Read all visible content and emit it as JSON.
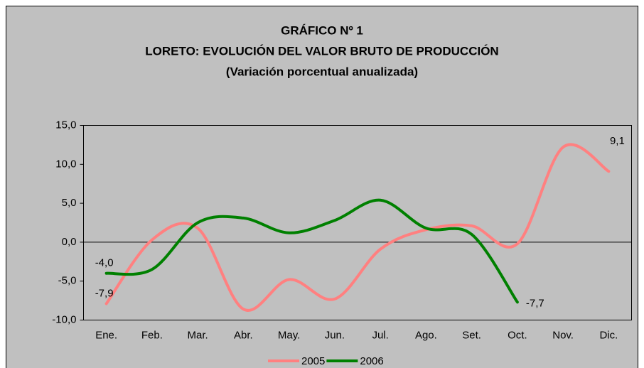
{
  "chart_data": {
    "type": "line",
    "title_lines": [
      "GRÁFICO Nº 1",
      "LORETO: EVOLUCIÓN DEL VALOR BRUTO DE PRODUCCIÓN",
      "(Variación porcentual anualizada)"
    ],
    "categories": [
      "Ene.",
      "Feb.",
      "Mar.",
      "Abr.",
      "May.",
      "Jun.",
      "Jul.",
      "Ago.",
      "Set.",
      "Oct.",
      "Nov.",
      "Dic."
    ],
    "series": [
      {
        "name": "2005",
        "color": "#ff8080",
        "values": [
          -7.9,
          0.3,
          1.8,
          -8.6,
          -4.8,
          -7.3,
          -0.9,
          1.6,
          2.1,
          -0.2,
          12.2,
          9.1
        ],
        "value_labels": [
          "-7,9",
          null,
          null,
          null,
          null,
          null,
          null,
          null,
          null,
          null,
          null,
          "9,1"
        ]
      },
      {
        "name": "2006",
        "color": "#008000",
        "values": [
          -4.0,
          -3.5,
          2.5,
          3.1,
          1.2,
          2.8,
          5.4,
          1.8,
          1.0,
          -7.7,
          null,
          null
        ],
        "value_labels": [
          "-4,0",
          null,
          null,
          null,
          null,
          null,
          null,
          null,
          null,
          "-7,7",
          null,
          null
        ]
      }
    ],
    "ylim": [
      -10,
      15
    ],
    "yticks": [
      {
        "value": -10,
        "label": "-10,0"
      },
      {
        "value": -5,
        "label": "-5,0"
      },
      {
        "value": 0,
        "label": "0,0"
      },
      {
        "value": 5,
        "label": "5,0"
      },
      {
        "value": 10,
        "label": "10,0"
      },
      {
        "value": 15,
        "label": "15,0"
      }
    ],
    "smooth": true
  }
}
